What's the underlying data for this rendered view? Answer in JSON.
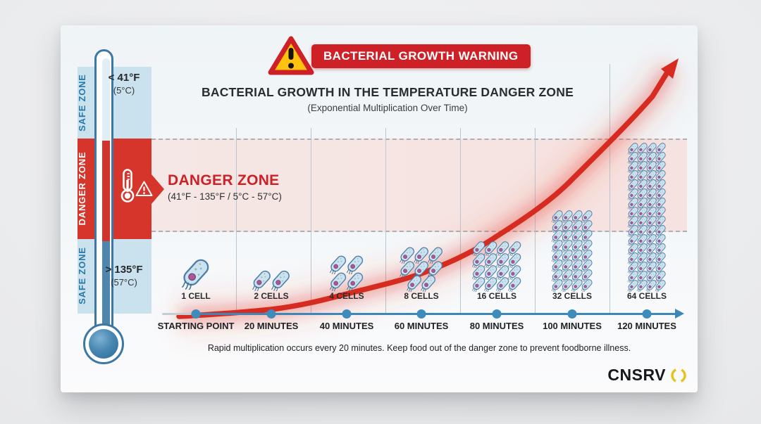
{
  "banner": {
    "warning_label": "BACTERIAL GROWTH WARNING"
  },
  "header": {
    "title": "BACTERIAL GROWTH IN THE TEMPERATURE DANGER ZONE",
    "subtitle": "(Exponential Multiplication Over Time)"
  },
  "thermometer": {
    "safe_top": {
      "zone_label": "SAFE ZONE",
      "temp_f": "< 41°F",
      "temp_c": "(5°C)"
    },
    "danger": {
      "zone_label": "DANGER ZONE"
    },
    "safe_bottom": {
      "zone_label": "SAFE ZONE",
      "temp_f": "> 135°F",
      "temp_c": "(57°C)"
    }
  },
  "danger_callout": {
    "title": "DANGER ZONE",
    "range": "(41°F - 135°F / 5°C - 57°C)"
  },
  "chart_data": {
    "type": "line",
    "title": "BACTERIAL GROWTH IN THE TEMPERATURE DANGER ZONE",
    "subtitle": "(Exponential Multiplication Over Time)",
    "x_categories": [
      "STARTING POINT",
      "20 MINUTES",
      "40 MINUTES",
      "60 MINUTES",
      "80 MINUTES",
      "100 MINUTES",
      "120 MINUTES"
    ],
    "series": [
      {
        "name": "Bacterial cells",
        "values": [
          1,
          2,
          4,
          8,
          16,
          32,
          64
        ]
      }
    ],
    "point_labels": [
      "1 CELL",
      "2 CELLS",
      "4 CELLS",
      "8 CELLS",
      "16 CELLS",
      "32 CELLS",
      "64 CELLS"
    ],
    "growth_interval_minutes": 20,
    "danger_band_label": "DANGER ZONE (41°F - 135°F / 5°C - 57°C)",
    "curve_color": "#D52B20",
    "axis_color": "#3E86B8",
    "grid": true,
    "legend": false
  },
  "footer": {
    "note": "Rapid multiplication occurs every 20 minutes. Keep food out of the danger zone to prevent foodborne illness."
  },
  "logo": {
    "text": "CNSRV",
    "ring_color": "#E6C31C"
  },
  "colors": {
    "banner_red": "#CE2127",
    "danger_red": "#D5352B",
    "safe_blue_band": "#C9E2EE",
    "zone_text_blue": "#2878A8",
    "pink_band": "#F6E3E1",
    "timeline_blue": "#3E86B8",
    "card_bg": "#F4F7F9",
    "warning_yellow": "#FFC20E"
  }
}
